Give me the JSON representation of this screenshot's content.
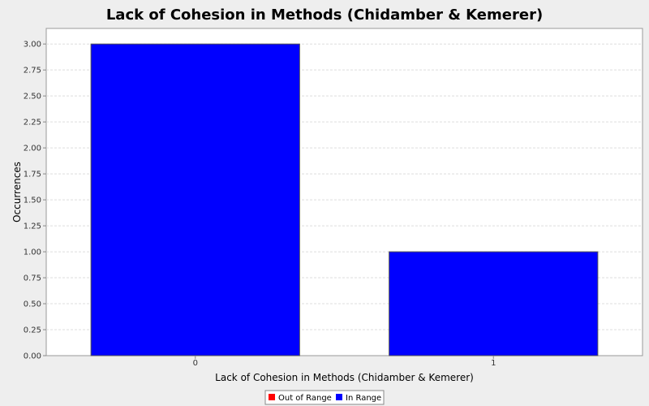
{
  "chart_data": {
    "type": "bar",
    "title": "Lack of Cohesion in Methods (Chidamber & Kemerer)",
    "xlabel": "Lack of Cohesion in Methods (Chidamber & Kemerer)",
    "ylabel": "Occurrences",
    "categories": [
      "0",
      "1"
    ],
    "series": [
      {
        "name": "Out of Range",
        "color": "#ff0000",
        "values": [
          0,
          0
        ]
      },
      {
        "name": "In Range",
        "color": "#0000ff",
        "values": [
          3,
          1
        ]
      }
    ],
    "ylim": [
      0,
      3.15
    ],
    "yticks": [
      "0.00",
      "0.25",
      "0.50",
      "0.75",
      "1.00",
      "1.25",
      "1.50",
      "1.75",
      "2.00",
      "2.25",
      "2.50",
      "2.75",
      "3.00"
    ],
    "grid": true,
    "legend_position": "bottom-center"
  }
}
